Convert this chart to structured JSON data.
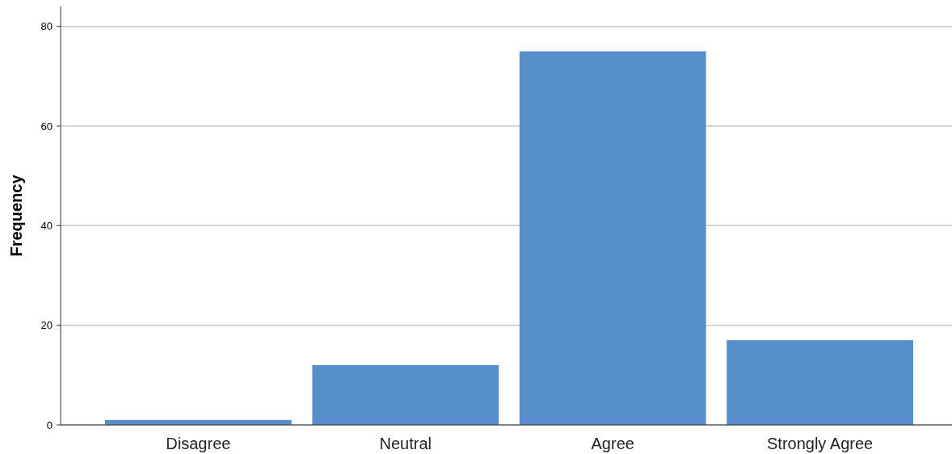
{
  "chart_data": {
    "type": "bar",
    "ylabel": "Frequency",
    "categories": [
      "Disagree",
      "Neutral",
      "Agree",
      "Strongly Agree"
    ],
    "values": [
      1,
      12,
      75,
      17
    ],
    "color": "#568fcb",
    "ylim": [
      0,
      84
    ],
    "yticks": [
      0,
      20,
      40,
      60,
      80
    ],
    "grid": "y"
  }
}
